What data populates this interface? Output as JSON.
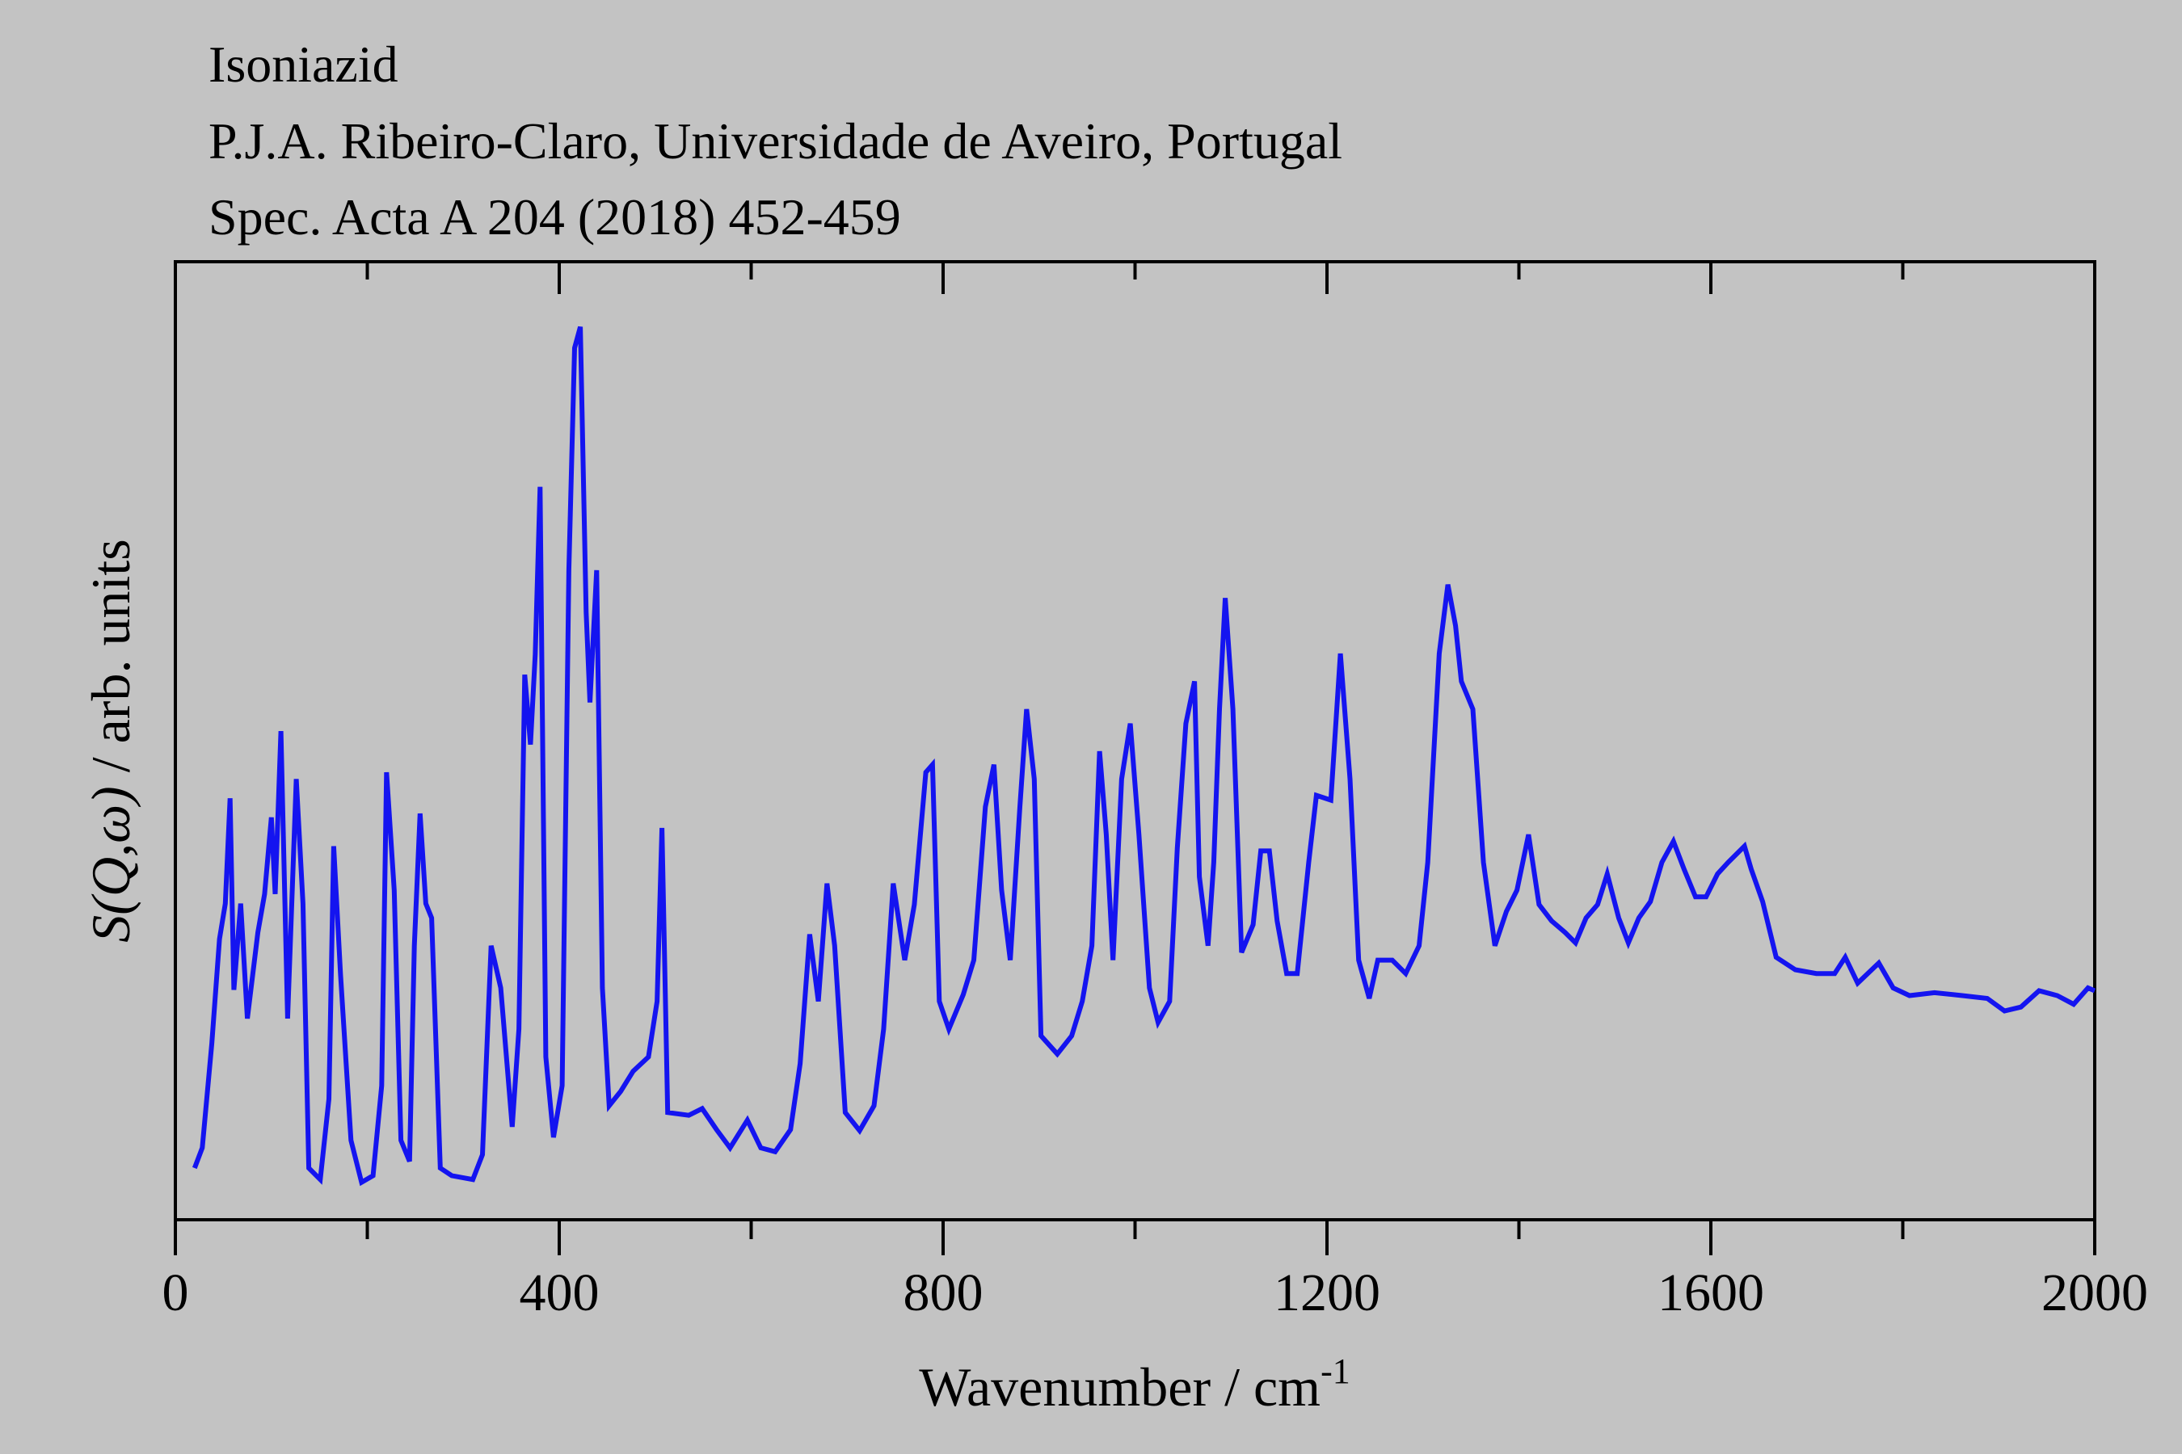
{
  "chart_data": {
    "type": "line",
    "title": "Isoniazid",
    "subtitle": [
      "P.J.A. Ribeiro-Claro, Universidade de Aveiro, Portugal",
      "Spec. Acta A 204 (2018) 452-459"
    ],
    "xlabel": "Wavenumber / cm",
    "xlabel_sup": "-1",
    "ylabel": {
      "symbol": "S(Q,ω)",
      "text": " / arb. units"
    },
    "xlim": [
      0,
      2000
    ],
    "xticks": [
      0,
      400,
      800,
      1200,
      1600,
      2000
    ],
    "xminorticks": [
      200,
      600,
      1000,
      1400,
      1800
    ],
    "ylim": [
      0,
      100
    ],
    "x": [
      20,
      28,
      38,
      46,
      52,
      57,
      61,
      68,
      75,
      86,
      93,
      100,
      104,
      110,
      117,
      126,
      133,
      139,
      151,
      160,
      165,
      172,
      183,
      194,
      206,
      215,
      220,
      228,
      235,
      244,
      249,
      255,
      261,
      267,
      276,
      288,
      310,
      320,
      329,
      339,
      351,
      358,
      364,
      370,
      375,
      380,
      386,
      394,
      403,
      410,
      416,
      422,
      428,
      432,
      439,
      445,
      452,
      464,
      477,
      493,
      502,
      507,
      513,
      535,
      549,
      564,
      578,
      596,
      610,
      625,
      641,
      651,
      661,
      670,
      679,
      687,
      698,
      713,
      728,
      738,
      748,
      760,
      770,
      782,
      789,
      796,
      806,
      821,
      832,
      844,
      853,
      861,
      870,
      880,
      887,
      895,
      902,
      919,
      934,
      945,
      955,
      963,
      970,
      977,
      986,
      995,
      1004,
      1015,
      1024,
      1036,
      1044,
      1053,
      1062,
      1067,
      1076,
      1082,
      1088,
      1094,
      1102,
      1111,
      1123,
      1131,
      1140,
      1148,
      1158,
      1169,
      1181,
      1189,
      1204,
      1214,
      1224,
      1233,
      1244,
      1253,
      1268,
      1282,
      1296,
      1305,
      1317,
      1326,
      1334,
      1340,
      1352,
      1363,
      1375,
      1387,
      1398,
      1410,
      1421,
      1434,
      1448,
      1459,
      1470,
      1482,
      1492,
      1504,
      1514,
      1525,
      1537,
      1549,
      1561,
      1572,
      1584,
      1595,
      1607,
      1618,
      1635,
      1642,
      1654,
      1668,
      1688,
      1710,
      1729,
      1740,
      1753,
      1775,
      1790,
      1807,
      1833,
      1862,
      1888,
      1906,
      1923,
      1942,
      1961,
      1978,
      1993,
      2000
    ],
    "series": [
      {
        "name": "Isoniazid",
        "color": "#1414f0",
        "values": [
          5.4,
          7.5,
          18.4,
          29.3,
          33,
          44,
          24,
          33,
          21,
          30,
          34,
          42,
          34,
          51,
          21,
          46,
          33,
          5.4,
          4.2,
          12.6,
          39,
          25.7,
          8.3,
          3.9,
          4.6,
          14,
          46.7,
          34.4,
          8.3,
          6.1,
          28.6,
          42.4,
          33,
          31.5,
          5.4,
          4.6,
          4.2,
          6.8,
          28.6,
          24.2,
          9.7,
          19.9,
          56.9,
          49.6,
          59,
          76.5,
          17,
          8.6,
          14,
          67.8,
          91,
          93.2,
          63.4,
          54,
          67.8,
          24.2,
          11.9,
          13.4,
          15.5,
          17,
          22.8,
          40.9,
          11.2,
          10.9,
          11.6,
          9.4,
          7.5,
          10.4,
          7.5,
          7.1,
          9.4,
          16.3,
          29.8,
          22.8,
          35.1,
          28.6,
          11.2,
          9.3,
          11.9,
          19.9,
          35.1,
          27.1,
          32.9,
          46.7,
          47.5,
          22.8,
          19.9,
          23.5,
          27.1,
          43.1,
          47.5,
          34.4,
          27.1,
          43.1,
          53.3,
          46,
          19.2,
          17.3,
          19.2,
          22.8,
          28.6,
          48.9,
          40.2,
          27.1,
          46,
          51.8,
          40.2,
          24.2,
          20.6,
          22.8,
          38.8,
          51.8,
          56.2,
          35.8,
          28.6,
          37.3,
          53.3,
          64.9,
          53.3,
          27.9,
          30.8,
          38.5,
          38.5,
          31.2,
          25.7,
          25.7,
          37.3,
          44.3,
          43.8,
          59.1,
          46,
          27.1,
          23.1,
          27.1,
          27.1,
          25.7,
          28.6,
          37.3,
          59.1,
          66.3,
          62,
          56.2,
          53.3,
          37.3,
          28.6,
          32.2,
          34.4,
          40.2,
          32.9,
          31.2,
          30,
          28.9,
          31.5,
          32.9,
          36.1,
          31.5,
          28.9,
          31.5,
          33.2,
          37.3,
          39.5,
          36.6,
          33.7,
          33.7,
          36.1,
          37.3,
          39,
          36.6,
          33.2,
          27.4,
          26.1,
          25.7,
          25.7,
          27.4,
          24.7,
          26.8,
          24.2,
          23.4,
          23.7,
          23.4,
          23.1,
          21.8,
          22.2,
          23.9,
          23.4,
          22.5,
          24.2,
          23.9
        ]
      }
    ]
  }
}
